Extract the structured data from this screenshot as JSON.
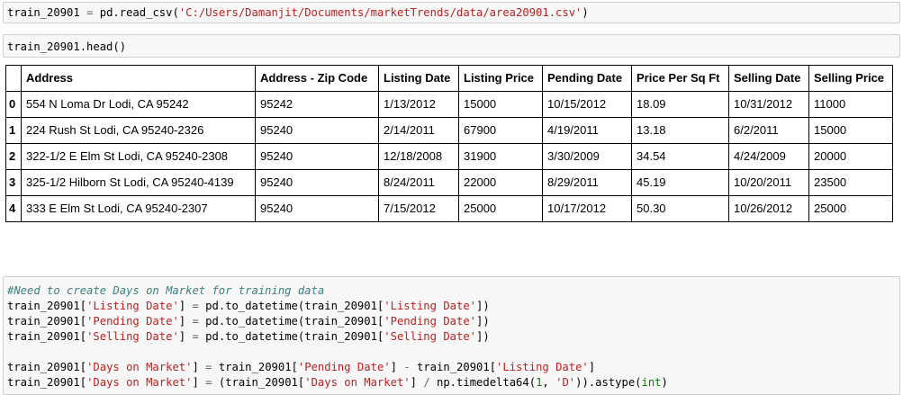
{
  "cells": {
    "read_csv": {
      "var": "train_20901",
      "eq": "=",
      "call": "pd.read_csv(",
      "path": "'C:/Users/Damanjit/Documents/marketTrends/data/area20901.csv'",
      "close": ")"
    },
    "head": {
      "code": "train_20901.head()"
    },
    "days": {
      "comment": "#Need to create Days on Market for training data",
      "lines": [
        {
          "a": "train_20901[",
          "s1": "'Listing Date'",
          "b": "] ",
          "op": "=",
          "c": " pd.to_datetime(train_20901[",
          "s2": "'Listing Date'",
          "d": "])"
        },
        {
          "a": "train_20901[",
          "s1": "'Pending Date'",
          "b": "] ",
          "op": "=",
          "c": " pd.to_datetime(train_20901[",
          "s2": "'Pending Date'",
          "d": "])"
        },
        {
          "a": "train_20901[",
          "s1": "'Selling Date'",
          "b": "] ",
          "op": "=",
          "c": " pd.to_datetime(train_20901[",
          "s2": "'Selling Date'",
          "d": "])"
        }
      ],
      "line5": {
        "a": "train_20901[",
        "s1": "'Days on Market'",
        "b": "] ",
        "op": "=",
        "c": " train_20901[",
        "s2": "'Pending Date'",
        "d": "] ",
        "op2": "-",
        "e": " train_20901[",
        "s3": "'Listing Date'",
        "f": "]"
      },
      "line6": {
        "a": "train_20901[",
        "s1": "'Days on Market'",
        "b": "] ",
        "op": "=",
        "c": " (train_20901[",
        "s2": "'Days on Market'",
        "d": "] ",
        "op2": "/",
        "e": " np.timedelta64(",
        "n1": "1",
        "f": ", ",
        "s3": "'D'",
        "g": ")).astype(",
        "n2": "int",
        "h": ")"
      }
    }
  },
  "table": {
    "columns": [
      "",
      "Address",
      "Address - Zip Code",
      "Listing Date",
      "Listing Price",
      "Pending Date",
      "Price Per Sq Ft",
      "Selling Date",
      "Selling Price"
    ],
    "rows": [
      [
        "0",
        "554 N Loma Dr Lodi, CA 95242",
        "95242",
        "1/13/2012",
        "15000",
        "10/15/2012",
        "18.09",
        "10/31/2012",
        "11000"
      ],
      [
        "1",
        "224 Rush St Lodi, CA 95240-2326",
        "95240",
        "2/14/2011",
        "67900",
        "4/19/2011",
        "13.18",
        "6/2/2011",
        "15000"
      ],
      [
        "2",
        "322-1/2 E Elm St Lodi, CA 95240-2308",
        "95240",
        "12/18/2008",
        "31900",
        "3/30/2009",
        "34.54",
        "4/24/2009",
        "20000"
      ],
      [
        "3",
        "325-1/2 Hilborn St Lodi, CA 95240-4139",
        "95240",
        "8/24/2011",
        "22000",
        "8/29/2011",
        "45.19",
        "10/20/2011",
        "23500"
      ],
      [
        "4",
        "333 E Elm St Lodi, CA 95240-2307",
        "95240",
        "7/15/2012",
        "25000",
        "10/17/2012",
        "50.30",
        "10/26/2012",
        "25000"
      ]
    ]
  }
}
